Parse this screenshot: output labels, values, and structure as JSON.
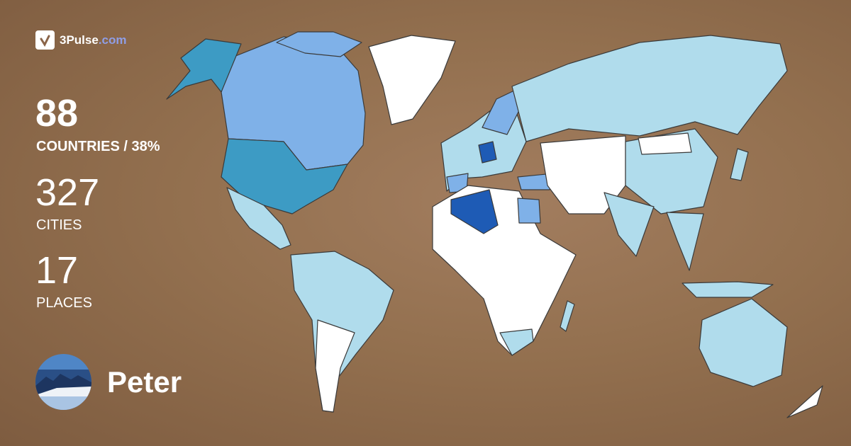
{
  "brand": {
    "name_main": "3Pulse",
    "name_domain": ".com"
  },
  "stats": [
    {
      "value": "88",
      "label": "COUNTRIES / 38%"
    },
    {
      "value": "327",
      "label": "CITIES"
    },
    {
      "value": "17",
      "label": "PLACES"
    }
  ],
  "user": {
    "name": "Peter"
  },
  "map_colors": {
    "background": "#93704f",
    "unvisited": "#ffffff",
    "level1": "#b0dcec",
    "level2": "#7fb1e8",
    "level3": "#3d9bc4",
    "level4": "#1e5bb5"
  }
}
